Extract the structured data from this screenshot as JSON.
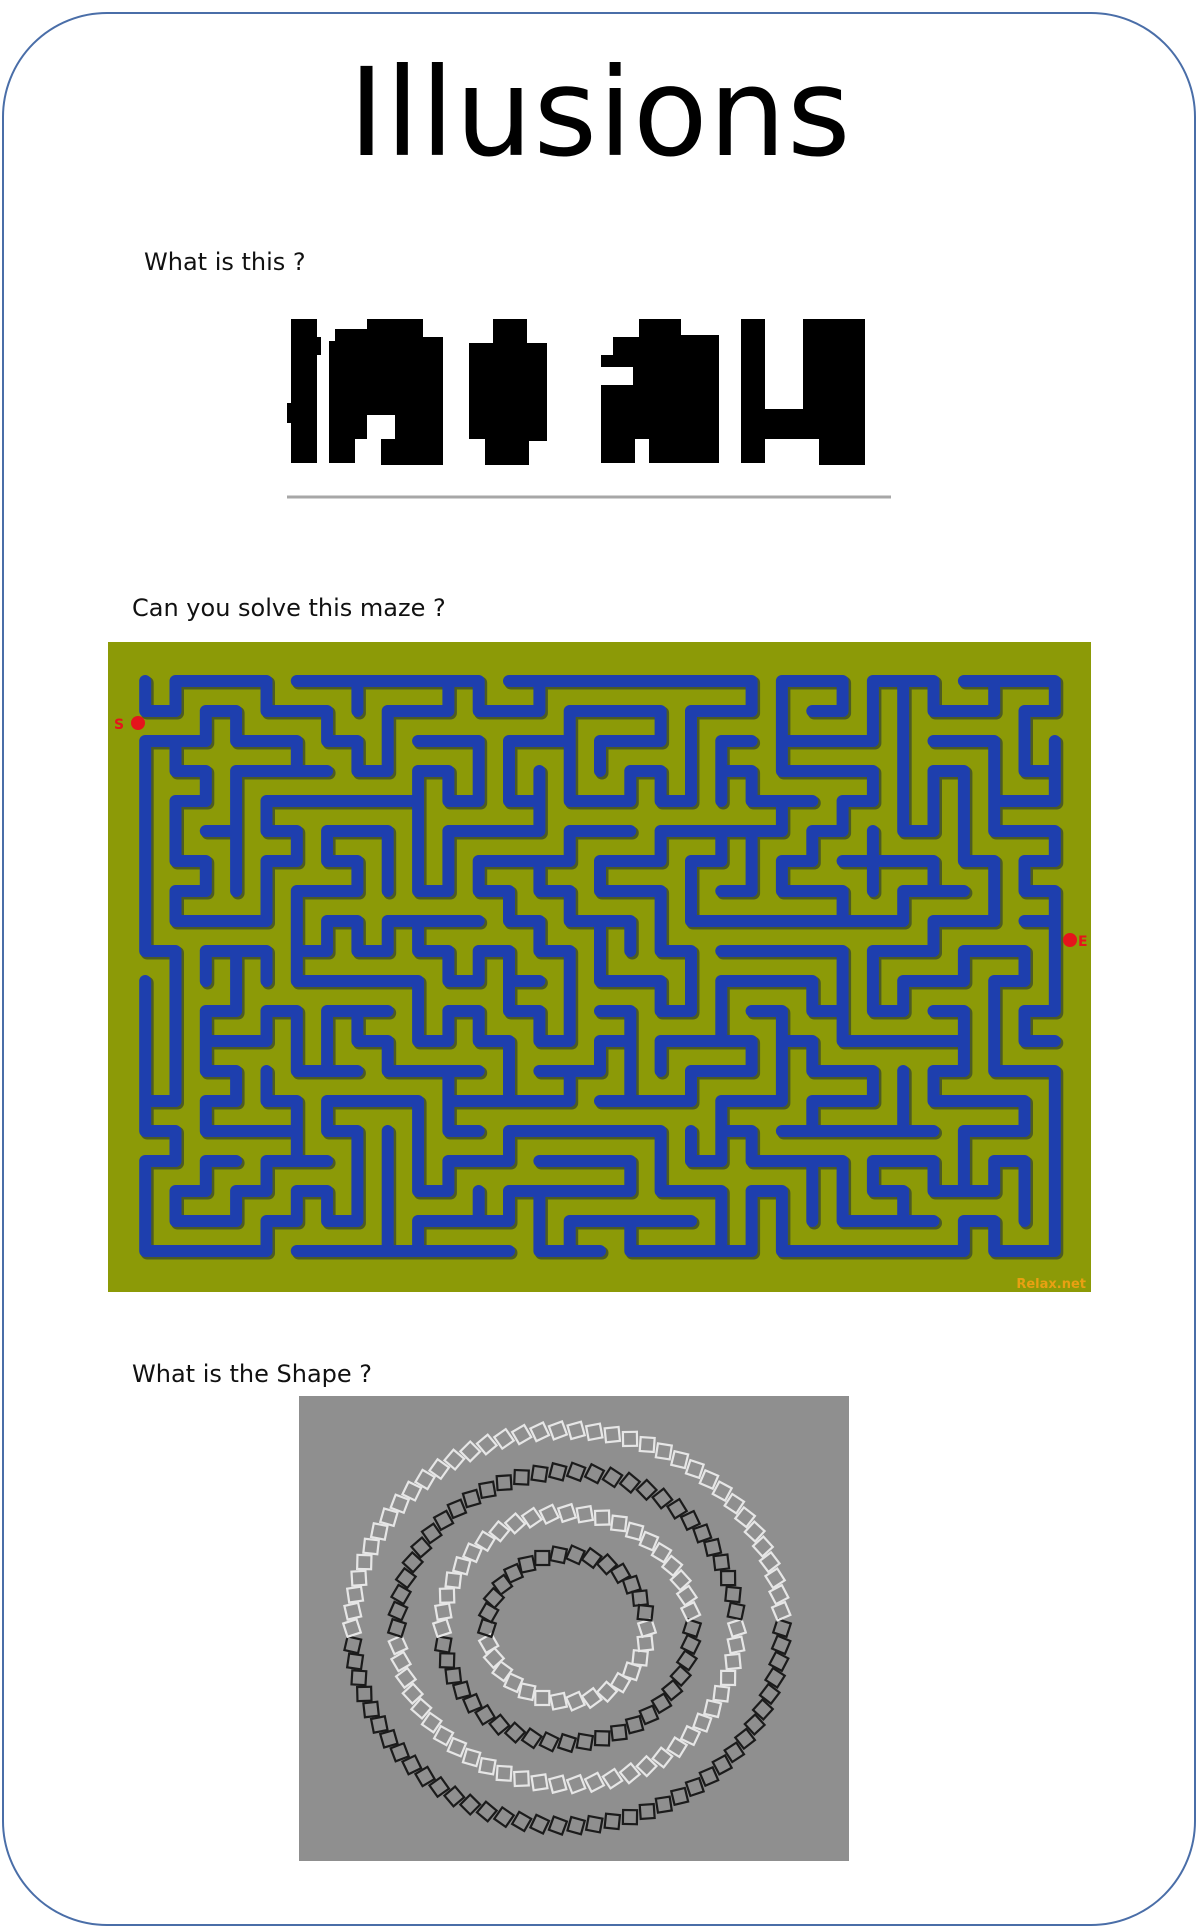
{
  "page": {
    "title": "Illusions"
  },
  "sections": [
    {
      "question": "What is this ?"
    },
    {
      "question": "Can you solve this maze ?",
      "start_marker": "S",
      "end_marker": "E",
      "watermark": "Relax.net"
    },
    {
      "question": "What is the Shape ?"
    }
  ],
  "colors": {
    "card_border": "#4a6ea8",
    "maze_background": "#8c9a07",
    "maze_path": "#1e3fae",
    "marker": "#e5141c",
    "illusion_background": "#8f8f8f"
  }
}
